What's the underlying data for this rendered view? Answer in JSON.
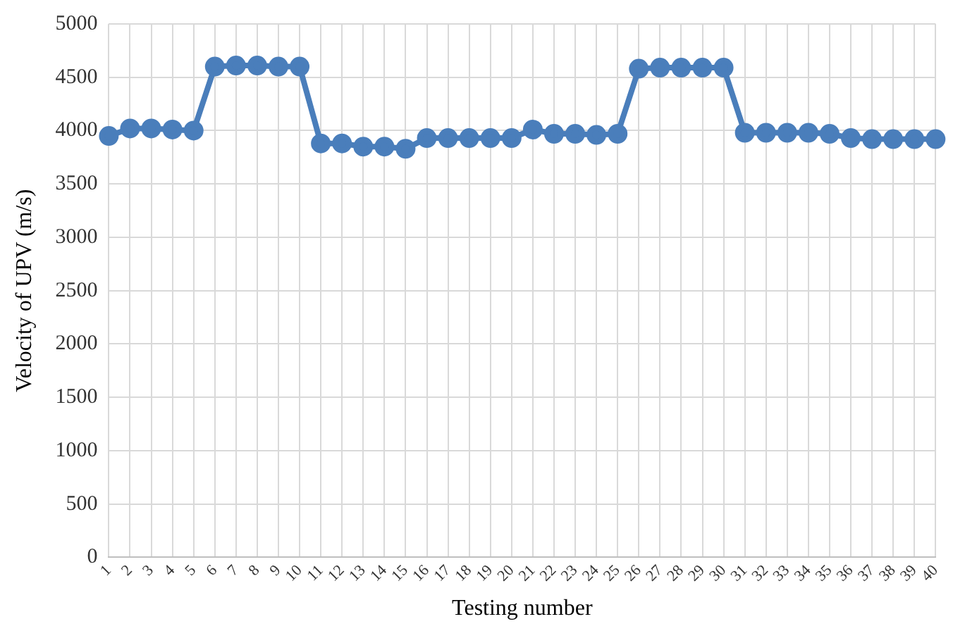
{
  "chart_data": {
    "type": "line",
    "xlabel": "Testing number",
    "ylabel": "Velocity of UPV (m/s)",
    "categories": [
      "1",
      "2",
      "3",
      "4",
      "5",
      "6",
      "7",
      "8",
      "9",
      "10",
      "11",
      "12",
      "13",
      "14",
      "15",
      "16",
      "17",
      "18",
      "19",
      "20",
      "21",
      "22",
      "23",
      "24",
      "25",
      "26",
      "27",
      "28",
      "29",
      "30",
      "31",
      "32",
      "33",
      "34",
      "35",
      "36",
      "37",
      "38",
      "39",
      "40"
    ],
    "series": [
      {
        "color": "#4a7ebb",
        "values": [
          3950,
          4020,
          4020,
          4010,
          4000,
          4600,
          4610,
          4610,
          4600,
          4600,
          3880,
          3880,
          3850,
          3850,
          3830,
          3930,
          3930,
          3930,
          3930,
          3930,
          4010,
          3970,
          3970,
          3960,
          3970,
          4580,
          4590,
          4590,
          4590,
          4590,
          3980,
          3980,
          3980,
          3980,
          3970,
          3930,
          3920,
          3920,
          3920,
          3920
        ]
      }
    ],
    "ylim": [
      0,
      5000
    ],
    "yticks": [
      0,
      500,
      1000,
      1500,
      2000,
      2500,
      3000,
      3500,
      4000,
      4500,
      5000
    ],
    "grid": true,
    "legend": false,
    "marker": "circle",
    "line_style": "solid"
  }
}
